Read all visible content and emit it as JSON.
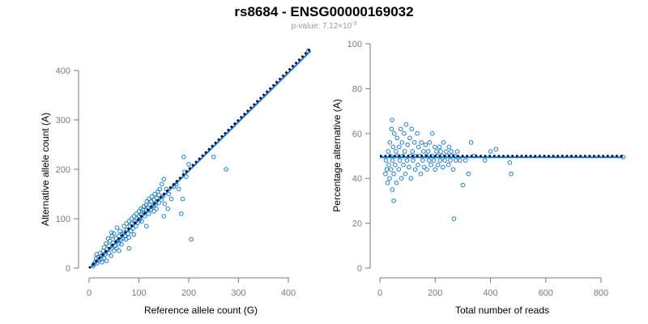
{
  "title": "rs8684 - ENSG00000169032",
  "subtitle": {
    "prefix": "p-value: 7.12×10",
    "exponent": "-3"
  },
  "colors": {
    "points": "#1f7fc4",
    "fit": "#1f7fe0",
    "reference": "#000000",
    "axis": "#7a7a7a"
  },
  "chart_data": [
    {
      "type": "scatter",
      "xlabel": "Reference allele count (G)",
      "ylabel": "Alternative allele count (A)",
      "xlim": [
        0,
        450
      ],
      "ylim": [
        0,
        450
      ],
      "xticks": [
        0,
        100,
        200,
        300,
        400
      ],
      "yticks": [
        0,
        100,
        200,
        300,
        400
      ],
      "reference_line": {
        "x": [
          0,
          445
        ],
        "y": [
          0,
          445
        ],
        "style": "dotted"
      },
      "fit_line": {
        "x": [
          5,
          445
        ],
        "y": [
          3,
          440
        ]
      },
      "points": [
        [
          8,
          4
        ],
        [
          10,
          8
        ],
        [
          12,
          12
        ],
        [
          14,
          20
        ],
        [
          15,
          28
        ],
        [
          16,
          10
        ],
        [
          18,
          22
        ],
        [
          20,
          15
        ],
        [
          22,
          30
        ],
        [
          24,
          18
        ],
        [
          25,
          25
        ],
        [
          26,
          12
        ],
        [
          28,
          35
        ],
        [
          30,
          20
        ],
        [
          30,
          42
        ],
        [
          32,
          28
        ],
        [
          34,
          50
        ],
        [
          35,
          15
        ],
        [
          36,
          38
        ],
        [
          38,
          60
        ],
        [
          40,
          30
        ],
        [
          40,
          45
        ],
        [
          42,
          55
        ],
        [
          44,
          25
        ],
        [
          45,
          40
        ],
        [
          46,
          65
        ],
        [
          48,
          52
        ],
        [
          50,
          35
        ],
        [
          50,
          70
        ],
        [
          52,
          45
        ],
        [
          54,
          60
        ],
        [
          55,
          40
        ],
        [
          56,
          82
        ],
        [
          58,
          55
        ],
        [
          60,
          65
        ],
        [
          60,
          50
        ],
        [
          62,
          75
        ],
        [
          64,
          58
        ],
        [
          65,
          48
        ],
        [
          66,
          68
        ],
        [
          68,
          60
        ],
        [
          70,
          85
        ],
        [
          70,
          72
        ],
        [
          72,
          65
        ],
        [
          74,
          58
        ],
        [
          75,
          90
        ],
        [
          76,
          78
        ],
        [
          78,
          70
        ],
        [
          80,
          62
        ],
        [
          80,
          95
        ],
        [
          82,
          85
        ],
        [
          84,
          75
        ],
        [
          85,
          100
        ],
        [
          86,
          90
        ],
        [
          88,
          80
        ],
        [
          90,
          105
        ],
        [
          90,
          68
        ],
        [
          92,
          95
        ],
        [
          94,
          85
        ],
        [
          95,
          110
        ],
        [
          96,
          100
        ],
        [
          98,
          92
        ],
        [
          100,
          115
        ],
        [
          100,
          105
        ],
        [
          102,
          98
        ],
        [
          104,
          120
        ],
        [
          105,
          108
        ],
        [
          106,
          95
        ],
        [
          108,
          118
        ],
        [
          110,
          125
        ],
        [
          110,
          112
        ],
        [
          112,
          105
        ],
        [
          114,
          128
        ],
        [
          115,
          118
        ],
        [
          116,
          135
        ],
        [
          118,
          122
        ],
        [
          120,
          110
        ],
        [
          120,
          140
        ],
        [
          122,
          128
        ],
        [
          124,
          118
        ],
        [
          125,
          135
        ],
        [
          126,
          145
        ],
        [
          128,
          125
        ],
        [
          130,
          138
        ],
        [
          130,
          115
        ],
        [
          132,
          150
        ],
        [
          134,
          130
        ],
        [
          135,
          120
        ],
        [
          136,
          142
        ],
        [
          138,
          155
        ],
        [
          140,
          132
        ],
        [
          140,
          148
        ],
        [
          142,
          160
        ],
        [
          145,
          138
        ],
        [
          146,
          170
        ],
        [
          148,
          145
        ],
        [
          150,
          180
        ],
        [
          152,
          130
        ],
        [
          155,
          160
        ],
        [
          158,
          120
        ],
        [
          160,
          150
        ],
        [
          165,
          140
        ],
        [
          170,
          165
        ],
        [
          175,
          170
        ],
        [
          180,
          160
        ],
        [
          185,
          110
        ],
        [
          188,
          140
        ],
        [
          190,
          225
        ],
        [
          192,
          195
        ],
        [
          195,
          185
        ],
        [
          200,
          210
        ],
        [
          205,
          58
        ],
        [
          250,
          225
        ],
        [
          275,
          200
        ],
        [
          440,
          440
        ],
        [
          60,
          35
        ],
        [
          45,
          72
        ],
        [
          80,
          40
        ],
        [
          115,
          85
        ],
        [
          150,
          105
        ]
      ]
    },
    {
      "type": "scatter",
      "xlabel": "Total number of reads",
      "ylabel": "Percentage alternative (A)",
      "xlim": [
        0,
        880
      ],
      "ylim": [
        0,
        100
      ],
      "xticks": [
        0,
        200,
        400,
        600,
        800
      ],
      "yticks": [
        0,
        20,
        40,
        60,
        80,
        100
      ],
      "reference_line": {
        "x": [
          0,
          880
        ],
        "y": [
          50,
          50
        ],
        "style": "dotted"
      },
      "fit_line": {
        "x": [
          0,
          880
        ],
        "y": [
          49.4,
          49.4
        ]
      },
      "points": [
        [
          20,
          42
        ],
        [
          22,
          48
        ],
        [
          25,
          44
        ],
        [
          28,
          38
        ],
        [
          30,
          52
        ],
        [
          32,
          46
        ],
        [
          35,
          40
        ],
        [
          36,
          56
        ],
        [
          38,
          50
        ],
        [
          40,
          44
        ],
        [
          42,
          62
        ],
        [
          44,
          66
        ],
        [
          45,
          35
        ],
        [
          46,
          48
        ],
        [
          48,
          54
        ],
        [
          50,
          30
        ],
        [
          50,
          42
        ],
        [
          52,
          60
        ],
        [
          55,
          46
        ],
        [
          58,
          52
        ],
        [
          60,
          38
        ],
        [
          62,
          58
        ],
        [
          65,
          50
        ],
        [
          68,
          44
        ],
        [
          70,
          54
        ],
        [
          72,
          48
        ],
        [
          75,
          62
        ],
        [
          78,
          40
        ],
        [
          80,
          56
        ],
        [
          82,
          50
        ],
        [
          85,
          46
        ],
        [
          88,
          60
        ],
        [
          90,
          52
        ],
        [
          92,
          42
        ],
        [
          95,
          64
        ],
        [
          98,
          48
        ],
        [
          100,
          55
        ],
        [
          105,
          45
        ],
        [
          108,
          58
        ],
        [
          110,
          50
        ],
        [
          112,
          40
        ],
        [
          115,
          62
        ],
        [
          118,
          52
        ],
        [
          120,
          48
        ],
        [
          125,
          56
        ],
        [
          128,
          44
        ],
        [
          130,
          50
        ],
        [
          135,
          60
        ],
        [
          138,
          46
        ],
        [
          140,
          54
        ],
        [
          145,
          50
        ],
        [
          148,
          42
        ],
        [
          150,
          56
        ],
        [
          155,
          48
        ],
        [
          158,
          52
        ],
        [
          160,
          45
        ],
        [
          165,
          55
        ],
        [
          168,
          50
        ],
        [
          170,
          44
        ],
        [
          175,
          52
        ],
        [
          178,
          48
        ],
        [
          180,
          56
        ],
        [
          185,
          46
        ],
        [
          188,
          50
        ],
        [
          190,
          60
        ],
        [
          195,
          48
        ],
        [
          198,
          54
        ],
        [
          200,
          44
        ],
        [
          205,
          52
        ],
        [
          208,
          50
        ],
        [
          210,
          46
        ],
        [
          215,
          54
        ],
        [
          218,
          48
        ],
        [
          220,
          52
        ],
        [
          225,
          50
        ],
        [
          228,
          45
        ],
        [
          230,
          56
        ],
        [
          235,
          48
        ],
        [
          240,
          52
        ],
        [
          245,
          50
        ],
        [
          248,
          46
        ],
        [
          250,
          54
        ],
        [
          255,
          48
        ],
        [
          258,
          52
        ],
        [
          260,
          50
        ],
        [
          265,
          44
        ],
        [
          268,
          22
        ],
        [
          270,
          50
        ],
        [
          275,
          48
        ],
        [
          280,
          52
        ],
        [
          290,
          48
        ],
        [
          300,
          37
        ],
        [
          310,
          48
        ],
        [
          320,
          42
        ],
        [
          330,
          56
        ],
        [
          340,
          50
        ],
        [
          380,
          48
        ],
        [
          400,
          52
        ],
        [
          420,
          53
        ],
        [
          470,
          47
        ],
        [
          475,
          42
        ],
        [
          880,
          49.5
        ]
      ]
    }
  ]
}
